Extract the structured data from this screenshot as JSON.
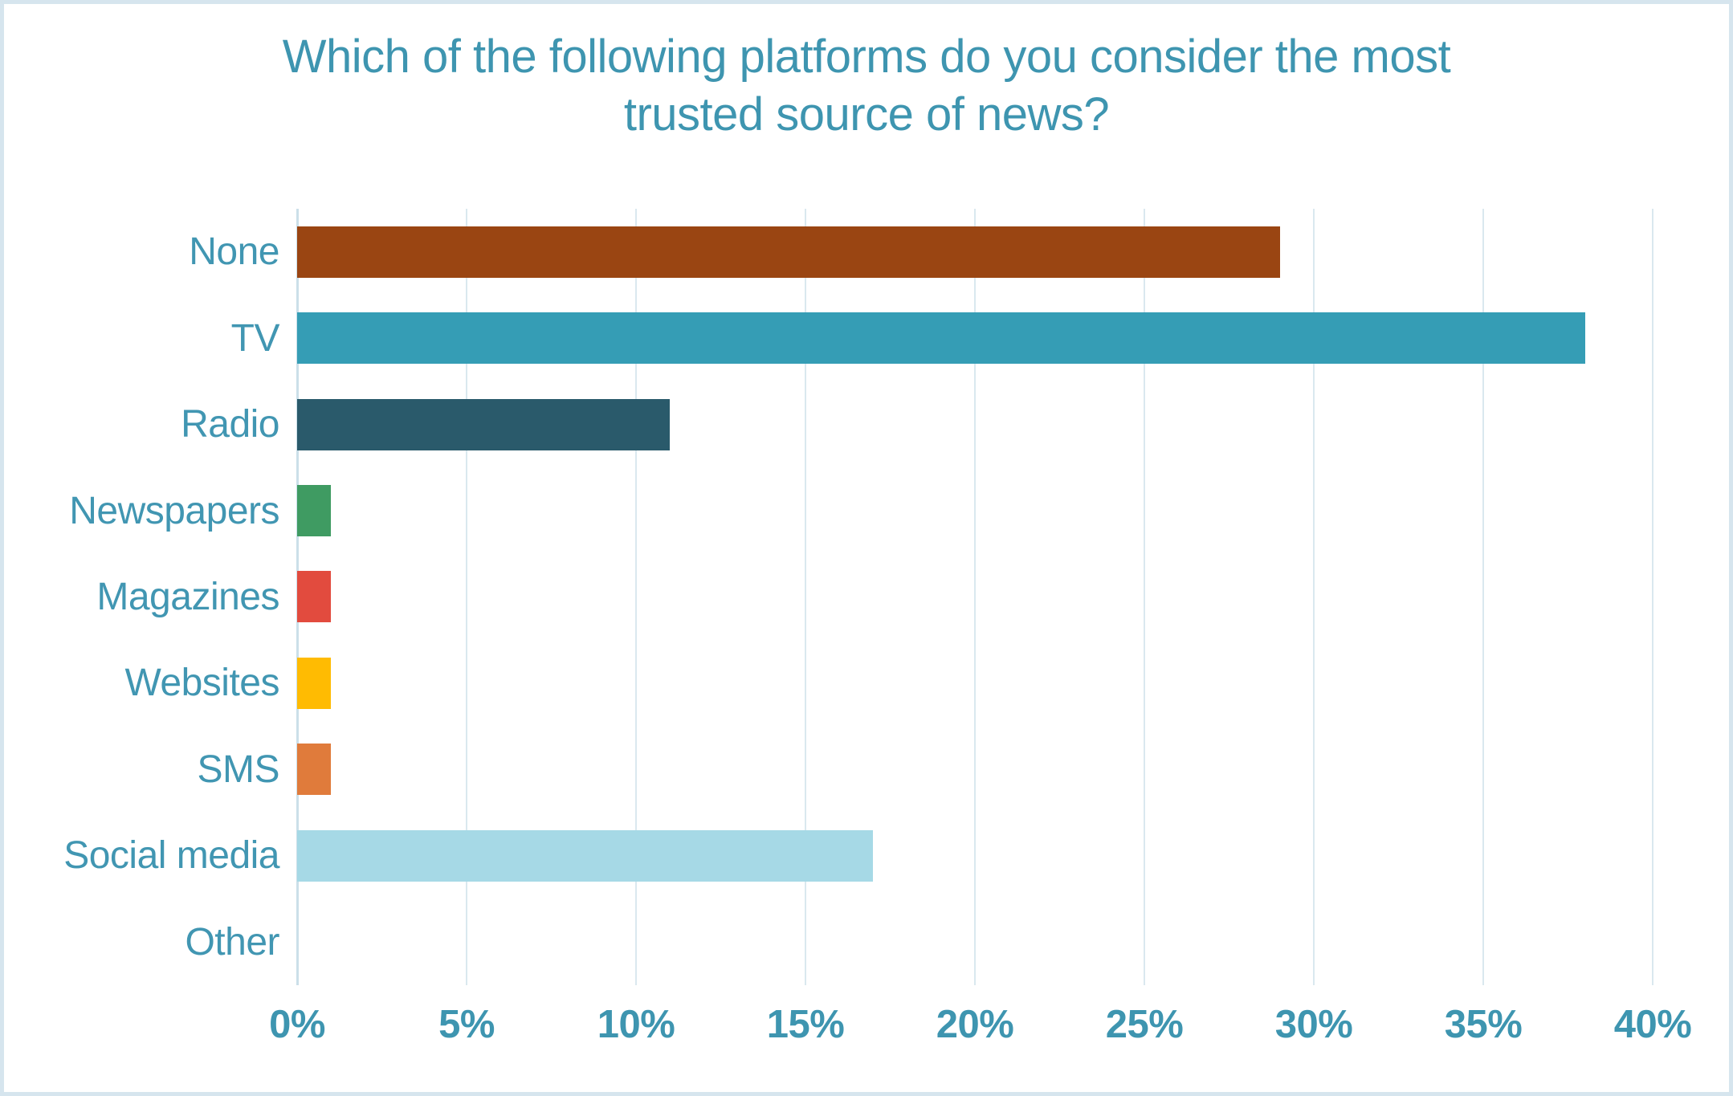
{
  "chart_data": {
    "type": "bar",
    "orientation": "horizontal",
    "title": "Which of the following platforms do you consider the most trusted source of news?",
    "title_lines": [
      "Which of the following platforms do you consider the most",
      "trusted source of news?"
    ],
    "categories": [
      "None",
      "TV",
      "Radio",
      "Newspapers",
      "Magazines",
      "Websites",
      "SMS",
      "Social media",
      "Other"
    ],
    "values": [
      29,
      38,
      11,
      1,
      1,
      1,
      1,
      17,
      0
    ],
    "value_unit": "%",
    "bar_colors": [
      "#9A4512",
      "#359DB5",
      "#2A5A6B",
      "#3F9B62",
      "#E24B3E",
      "#FFBB02",
      "#E07B3B",
      "#A6D9E6",
      "#FFFFFF"
    ],
    "xlabel": "",
    "ylabel": "",
    "xlim": [
      0,
      40
    ],
    "x_tick_interval": 5,
    "x_ticks": [
      "0%",
      "5%",
      "10%",
      "15%",
      "20%",
      "25%",
      "30%",
      "35%",
      "40%"
    ],
    "grid": "vertical-only",
    "legend": "none",
    "colors": {
      "title_text": "#3E95B0",
      "category_text": "#4196B2",
      "tick_text": "#3E95B0",
      "gridline": "#DAE8EF",
      "axis_line": "#CBDFE9",
      "frame_border": "#D6E5EE",
      "background": "#FFFFFF"
    }
  }
}
